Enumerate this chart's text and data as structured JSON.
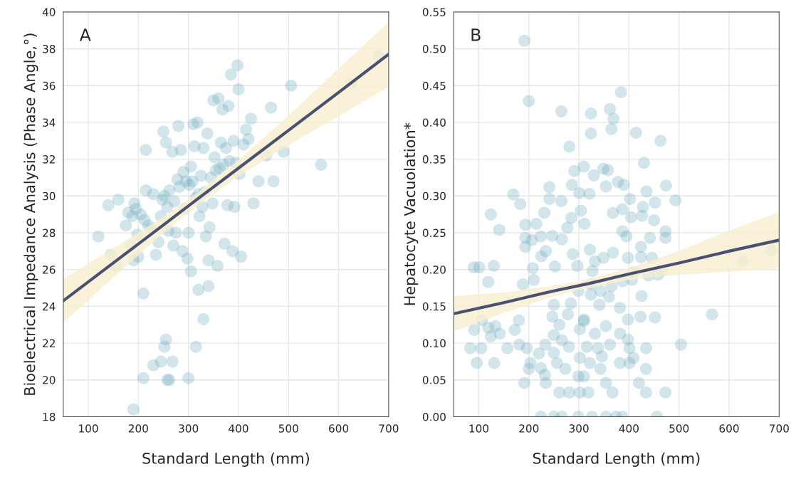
{
  "chart_data": [
    {
      "type": "scatter",
      "title": "A",
      "xlabel": "Standard Length (mm)",
      "ylabel": "Bioelectrical Impedance Analysis (Phase Angle,°)",
      "xlim": [
        50,
        700
      ],
      "xticks": [
        100,
        200,
        300,
        400,
        500,
        600,
        700
      ],
      "ylim": [
        18,
        40
      ],
      "yticks": [
        18,
        20,
        22,
        24,
        26,
        28,
        30,
        32,
        34,
        36,
        38,
        40
      ],
      "grid": true,
      "legend": false,
      "series": [
        {
          "marker": "circle",
          "color": "#6aaabd",
          "x": [
            120,
            140,
            145,
            155,
            160,
            175,
            180,
            185,
            188,
            190,
            192,
            195,
            198,
            200,
            205,
            210,
            212,
            215,
            215,
            220,
            225,
            230,
            235,
            240,
            245,
            248,
            250,
            252,
            255,
            258,
            260,
            262,
            268,
            270,
            272,
            275,
            278,
            280,
            282,
            285,
            288,
            290,
            292,
            295,
            298,
            300,
            302,
            305,
            305,
            308,
            310,
            312,
            315,
            318,
            320,
            322,
            325,
            328,
            330,
            332,
            335,
            338,
            340,
            342,
            345,
            348,
            350,
            352,
            355,
            358,
            360,
            362,
            365,
            368,
            370,
            372,
            375,
            378,
            380,
            382,
            385,
            388,
            390,
            392,
            395,
            398,
            400,
            402,
            405,
            410,
            415,
            420,
            425,
            430,
            440,
            455,
            465,
            470,
            490,
            505,
            565,
            625,
            680,
            190,
            210,
            230,
            245,
            255,
            252,
            258,
            262,
            268,
            300,
            315,
            330,
            340,
            320
          ],
          "values": [
            27.8,
            29.5,
            26.8,
            26.2,
            29.8,
            28.4,
            29.1,
            27.3,
            28.9,
            26.5,
            29.6,
            29.3,
            27.9,
            26.7,
            29.0,
            24.7,
            28.7,
            32.5,
            30.3,
            28.4,
            28.2,
            30.1,
            26.8,
            27.5,
            28.9,
            29.8,
            33.5,
            30.0,
            32.9,
            29.4,
            28.1,
            30.3,
            32.4,
            27.3,
            29.7,
            28.0,
            30.9,
            33.8,
            30.5,
            32.5,
            27.0,
            31.3,
            29.3,
            30.8,
            26.6,
            28.0,
            30.6,
            31.6,
            25.9,
            30.8,
            33.9,
            32.7,
            29.9,
            34.0,
            30.1,
            28.9,
            31.1,
            29.4,
            32.6,
            30.2,
            27.8,
            33.4,
            26.5,
            28.3,
            31.0,
            29.6,
            35.2,
            32.1,
            31.4,
            26.2,
            35.3,
            31.5,
            32.9,
            34.7,
            31.7,
            27.4,
            32.6,
            29.5,
            34.9,
            31.9,
            36.6,
            27.0,
            33.0,
            29.4,
            31.8,
            37.1,
            35.8,
            31.2,
            26.7,
            32.8,
            33.6,
            33.1,
            34.2,
            29.6,
            30.8,
            32.2,
            34.8,
            30.8,
            32.4,
            36.0,
            31.7,
            36.1,
            37.6,
            18.4,
            20.1,
            20.8,
            21.0,
            22.2,
            21.8,
            20.0,
            20.0,
            21.0,
            20.1,
            21.8,
            23.3,
            25.1,
            24.9
          ]
        },
        {
          "type": "line",
          "color": "#4a5170",
          "x": [
            50,
            150,
            250,
            320,
            400,
            500,
            600,
            700
          ],
          "values": [
            24.3,
            26.36,
            28.42,
            29.87,
            31.51,
            33.57,
            35.63,
            37.7
          ],
          "lower": [
            23.1,
            25.56,
            27.97,
            29.52,
            31.06,
            32.77,
            34.33,
            35.95
          ],
          "upper": [
            25.5,
            27.16,
            28.87,
            30.22,
            31.96,
            34.37,
            36.93,
            39.45
          ]
        }
      ]
    },
    {
      "type": "scatter",
      "title": "B",
      "xlabel": "Standard Length (mm)",
      "ylabel": "Hepatocyte Vacuolation*",
      "xlim": [
        50,
        700
      ],
      "xticks": [
        100,
        200,
        300,
        400,
        500,
        600,
        700
      ],
      "ylim": [
        0,
        0.55
      ],
      "yticks": [
        {
          "value": 0,
          "label": "0.00"
        },
        {
          "value": 0.05,
          "label": "0.05"
        },
        {
          "value": 0.1,
          "label": "0.10"
        },
        {
          "value": 0.15,
          "label": "0.15"
        },
        {
          "value": 0.2,
          "label": "0.20"
        },
        {
          "value": 0.25,
          "label": "0.25"
        },
        {
          "value": 0.3,
          "label": "0.30"
        },
        {
          "value": 0.35,
          "label": "0.35"
        },
        {
          "value": 0.4,
          "label": "0.40"
        },
        {
          "value": 0.45,
          "label": "0.45"
        },
        {
          "value": 0.5,
          "label": "0.50"
        },
        {
          "value": 0.55,
          "label": "0.55"
        }
      ],
      "grid": true,
      "legend": false,
      "series": [
        {
          "marker": "circle",
          "color": "#6aaabd",
          "x": [
            191,
            200,
            265,
            324,
            384,
            362,
            369,
            365,
            324,
            414,
            463,
            281,
            430,
            291,
            310,
            330,
            349,
            358,
            286,
            241,
            241,
            169,
            183,
            124,
            141,
            193,
            215,
            231,
            265,
            301,
            321,
            354,
            378,
            390,
            435,
            474,
            493,
            402,
            452,
            428,
            368,
            387,
            304,
            311,
            285,
            277,
            266,
            247,
            224,
            193,
            193,
            206,
            225,
            234,
            252,
            208,
            210,
            188,
            90,
            101,
            130,
            119,
            322,
            332,
            349,
            368,
            387,
            395,
            398,
            424,
            424,
            442,
            473,
            473,
            450,
            404,
            426,
            446,
            458,
            466,
            439,
            409,
            406,
            288,
            297,
            327,
            299,
            324,
            343,
            365,
            387,
            284,
            278,
            250,
            247,
            261,
            310,
            324,
            341,
            360,
            382,
            398,
            423,
            452,
            425,
            566,
            504,
            627,
            683,
            106,
            91,
            119,
            142,
            124,
            133,
            172,
            180,
            83,
            105,
            157,
            96,
            131,
            181,
            196,
            203,
            200,
            191,
            220,
            233,
            224,
            234,
            232,
            250,
            256,
            273,
            261,
            281,
            280,
            266,
            250,
            302,
            310,
            302,
            299,
            310,
            302,
            319,
            322,
            316,
            338,
            343,
            354,
            367,
            346,
            362,
            382,
            401,
            401,
            409,
            434,
            434,
            420,
            434,
            473,
            398,
            382,
            354,
            332,
            224,
            250,
            266,
            299,
            326,
            354,
            374,
            387,
            456
          ],
          "values": [
            0.511,
            0.429,
            0.415,
            0.412,
            0.441,
            0.418,
            0.405,
            0.391,
            0.385,
            0.386,
            0.375,
            0.367,
            0.345,
            0.334,
            0.34,
            0.328,
            0.337,
            0.335,
            0.315,
            0.312,
            0.296,
            0.302,
            0.289,
            0.275,
            0.254,
            0.261,
            0.262,
            0.277,
            0.293,
            0.304,
            0.303,
            0.313,
            0.319,
            0.315,
            0.306,
            0.314,
            0.294,
            0.296,
            0.291,
            0.285,
            0.277,
            0.282,
            0.28,
            0.262,
            0.27,
            0.257,
            0.241,
            0.246,
            0.245,
            0.243,
            0.231,
            0.24,
            0.218,
            0.225,
            0.204,
            0.202,
            0.186,
            0.18,
            0.203,
            0.203,
            0.205,
            0.183,
            0.227,
            0.211,
            0.216,
            0.223,
            0.252,
            0.245,
            0.216,
            0.231,
            0.217,
            0.243,
            0.252,
            0.243,
            0.267,
            0.271,
            0.273,
            0.216,
            0.193,
            0.198,
            0.192,
            0.196,
            0.186,
            0.221,
            0.205,
            0.198,
            0.171,
            0.18,
            0.171,
            0.177,
            0.184,
            0.154,
            0.139,
            0.152,
            0.136,
            0.125,
            0.13,
            0.166,
            0.152,
            0.163,
            0.148,
            0.132,
            0.136,
            0.135,
            0.164,
            0.139,
            0.098,
            0.211,
            0.226,
            0.131,
            0.118,
            0.121,
            0.113,
            0.109,
            0.123,
            0.118,
            0.131,
            0.093,
            0.093,
            0.093,
            0.073,
            0.073,
            0.098,
            0.093,
            0.073,
            0.065,
            0.046,
            0.086,
            0.098,
            0.066,
            0.046,
            0.057,
            0.087,
            0.073,
            0.065,
            0.033,
            0.033,
            0.095,
            0.104,
            0.111,
            0.119,
            0.132,
            0.08,
            0.055,
            0.055,
            0.033,
            0.033,
            0.073,
            0.095,
            0.093,
            0.065,
            0.046,
            0.033,
            0.082,
            0.098,
            0.073,
            0.093,
            0.073,
            0.08,
            0.093,
            0.065,
            0.046,
            0.033,
            0.033,
            0.105,
            0.113,
            0.123,
            0.113,
            0,
            0,
            0,
            0,
            0,
            0,
            0,
            0,
            0
          ]
        },
        {
          "type": "line",
          "color": "#4a5170",
          "x": [
            50,
            150,
            250,
            320,
            400,
            500,
            600,
            700
          ],
          "values": [
            0.14,
            0.155,
            0.171,
            0.181,
            0.194,
            0.209,
            0.225,
            0.24
          ],
          "lower": [
            0.116,
            0.141,
            0.164,
            0.175,
            0.186,
            0.193,
            0.197,
            0.202
          ],
          "upper": [
            0.164,
            0.169,
            0.178,
            0.187,
            0.202,
            0.225,
            0.253,
            0.278
          ]
        }
      ]
    }
  ]
}
